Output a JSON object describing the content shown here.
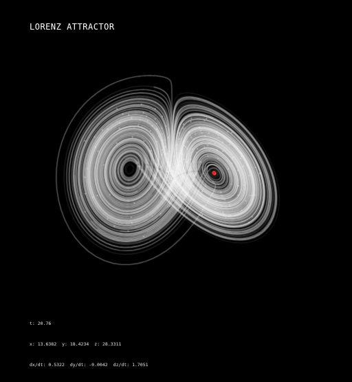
{
  "title": "LORENZ ATTRACTOR",
  "colors": {
    "background": "#000000",
    "trail": "#ffffff",
    "highlight": "#ff3b3b",
    "text": "#ffffff"
  },
  "readout": {
    "t": "t: 20.76",
    "x": "x: 13.6382",
    "y": "y: 18.4234",
    "z": "z: 28.3311",
    "dx": "dx/dt: 0.5322",
    "dy": "dy/dt: -0.0042",
    "dz": "dz/dt: 1.7051"
  }
}
